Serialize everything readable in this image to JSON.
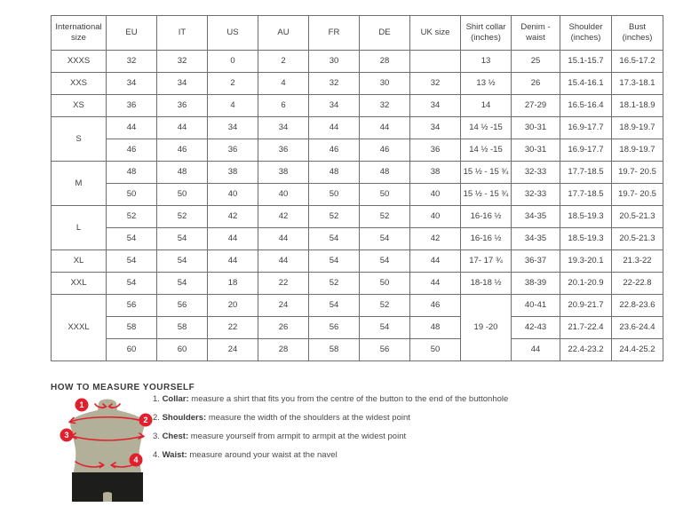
{
  "size_table": {
    "columns": [
      "International size",
      "EU",
      "IT",
      "US",
      "AU",
      "FR",
      "DE",
      "UK size",
      "Shirt collar (inches)",
      "Denim - waist",
      "Shoulder (inches)",
      "Bust (inches)"
    ],
    "rows": [
      {
        "cells": [
          "XXXS",
          "32",
          "32",
          "0",
          "2",
          "30",
          "28",
          "",
          "13",
          "25",
          "15.1-15.7",
          "16.5-17.2"
        ]
      },
      {
        "cells": [
          "XXS",
          "34",
          "34",
          "2",
          "4",
          "32",
          "30",
          "32",
          "13 ½",
          "26",
          "15.4-16.1",
          "17.3-18.1"
        ]
      },
      {
        "cells": [
          "XS",
          "36",
          "36",
          "4",
          "6",
          "34",
          "32",
          "34",
          "14",
          "27-29",
          "16.5-16.4",
          "18.1-18.9"
        ]
      },
      {
        "cells": [
          {
            "t": "S",
            "rs": 2
          },
          "44",
          "44",
          "34",
          "34",
          "44",
          "44",
          "34",
          "14 ½ -15",
          "30-31",
          "16.9-17.7",
          "18.9-19.7"
        ]
      },
      {
        "cells": [
          "46",
          "46",
          "36",
          "36",
          "46",
          "46",
          "36",
          "14 ½ -15",
          "30-31",
          "16.9-17.7",
          "18.9-19.7"
        ]
      },
      {
        "cells": [
          {
            "t": "M",
            "rs": 2
          },
          "48",
          "48",
          "38",
          "38",
          "48",
          "48",
          "38",
          "15 ½ - 15 ¾",
          "32-33",
          "17.7-18.5",
          "19.7- 20.5"
        ]
      },
      {
        "cells": [
          "50",
          "50",
          "40",
          "40",
          "50",
          "50",
          "40",
          "15 ½ - 15 ¾",
          "32-33",
          "17.7-18.5",
          "19.7- 20.5"
        ]
      },
      {
        "cells": [
          {
            "t": "L",
            "rs": 2
          },
          "52",
          "52",
          "42",
          "42",
          "52",
          "52",
          "40",
          "16-16 ½",
          "34-35",
          "18.5-19.3",
          "20.5-21.3"
        ]
      },
      {
        "cells": [
          "54",
          "54",
          "44",
          "44",
          "54",
          "54",
          "42",
          "16-16 ½",
          "34-35",
          "18.5-19.3",
          "20.5-21.3"
        ]
      },
      {
        "cells": [
          "XL",
          "54",
          "54",
          "44",
          "44",
          "54",
          "54",
          "44",
          "17- 17 ¾",
          "36-37",
          "19.3-20.1",
          "21.3-22"
        ]
      },
      {
        "cells": [
          "XXL",
          "54",
          "54",
          "18",
          "22",
          "52",
          "50",
          "44",
          "18-18 ½",
          "38-39",
          "20.1-20.9",
          "22-22.8"
        ]
      },
      {
        "cells": [
          {
            "t": "XXXL",
            "rs": 3
          },
          "56",
          "56",
          "20",
          "24",
          "54",
          "52",
          "46",
          {
            "t": "19 -20",
            "rs": 3
          },
          "40-41",
          "20.9-21.7",
          "22.8-23.6"
        ]
      },
      {
        "cells": [
          "58",
          "58",
          "22",
          "26",
          "56",
          "54",
          "48",
          "42-43",
          "21.7-22.4",
          "23.6-24.4"
        ]
      },
      {
        "cells": [
          "60",
          "60",
          "24",
          "28",
          "58",
          "56",
          "50",
          "44",
          "22.4-23.2",
          "24.4-25.2"
        ]
      }
    ]
  },
  "measure": {
    "heading": "HOW TO MEASURE YOURSELF",
    "markers": [
      "1",
      "2",
      "3",
      "4"
    ],
    "instructions": [
      {
        "num": "1.",
        "label": "Collar",
        "text": "measure a shirt that fits you from the centre of the button to the end of the buttonhole"
      },
      {
        "num": "2.",
        "label": "Shoulders",
        "text": "measure the width of the shoulders at the widest point"
      },
      {
        "num": "3.",
        "label": "Chest",
        "text": "measure yourself from armpit to armpit at the widest point"
      },
      {
        "num": "4.",
        "label": "Waist",
        "text": "measure around your waist at the navel"
      }
    ],
    "colors": {
      "accent_red": "#e2202d",
      "torso": "#b2b099",
      "shorts": "#1d1d1b"
    }
  }
}
